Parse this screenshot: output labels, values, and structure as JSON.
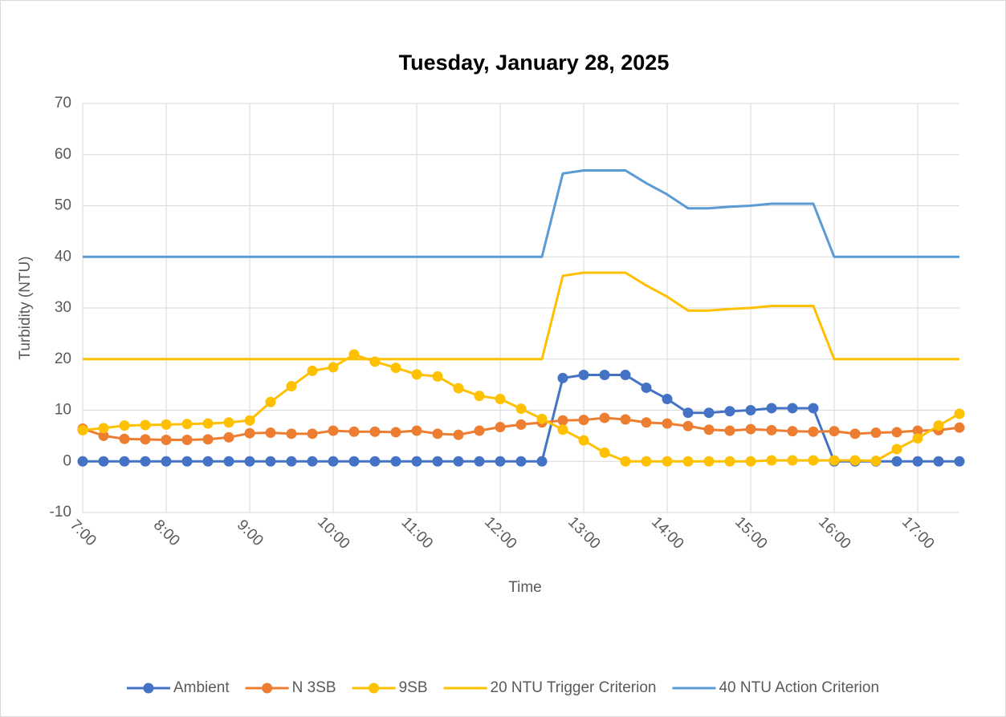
{
  "chart_data": {
    "type": "line",
    "title": "Tuesday, January 28, 2025",
    "x_label": "Time",
    "y_label": "Turbidity (NTU)",
    "categories": [
      "7:00",
      null,
      null,
      null,
      "8:00",
      null,
      null,
      null,
      "9:00",
      null,
      null,
      null,
      "10:00",
      null,
      null,
      null,
      "11:00",
      null,
      null,
      null,
      "12:00",
      null,
      null,
      null,
      "13:00",
      null,
      null,
      null,
      "14:00",
      null,
      null,
      null,
      "15:00",
      null,
      null,
      null,
      "16:00",
      null,
      null,
      null,
      "17:00",
      null,
      null
    ],
    "ylim": [
      -10,
      70
    ],
    "yticks": [
      -10,
      0,
      10,
      20,
      30,
      40,
      50,
      60,
      70
    ],
    "grid": true,
    "legend": "bottom",
    "series": [
      {
        "name": "Ambient",
        "color": "#4472c4",
        "marker": true,
        "values": [
          0,
          0,
          0,
          0,
          0,
          0,
          0,
          0,
          0,
          0,
          0,
          0,
          0,
          0,
          0,
          0,
          0,
          0,
          0,
          0,
          0,
          0,
          0,
          16.3,
          16.9,
          16.9,
          16.9,
          14.4,
          12.2,
          9.5,
          9.5,
          9.8,
          10.0,
          10.4,
          10.4,
          10.4,
          0,
          0,
          0,
          0,
          0,
          0,
          0
        ]
      },
      {
        "name": "N 3SB",
        "color": "#ed7d31",
        "marker": true,
        "values": [
          6.4,
          5.0,
          4.4,
          4.3,
          4.2,
          4.2,
          4.3,
          4.7,
          5.5,
          5.6,
          5.4,
          5.4,
          6.0,
          5.8,
          5.8,
          5.7,
          6.0,
          5.4,
          5.2,
          6.0,
          6.7,
          7.2,
          7.6,
          8.0,
          8.1,
          8.5,
          8.2,
          7.6,
          7.4,
          6.9,
          6.2,
          6.0,
          6.3,
          6.1,
          5.9,
          5.8,
          5.9,
          5.4,
          5.6,
          5.7,
          6.0,
          6.1,
          6.6
        ]
      },
      {
        "name": "9SB",
        "color": "#ffc000",
        "marker": true,
        "values": [
          6.1,
          6.5,
          7.0,
          7.1,
          7.2,
          7.3,
          7.4,
          7.6,
          8.0,
          11.6,
          14.7,
          17.7,
          18.4,
          20.9,
          19.5,
          18.3,
          17.0,
          16.6,
          14.3,
          12.8,
          12.2,
          10.3,
          8.3,
          6.2,
          4.1,
          1.7,
          0,
          0,
          0,
          0,
          0,
          0,
          0,
          0.2,
          0.2,
          0.2,
          0.2,
          0.2,
          0.1,
          2.4,
          4.5,
          7.0,
          9.3
        ]
      },
      {
        "name": "20 NTU Trigger Criterion",
        "color": "#ffc000",
        "marker": false,
        "values": [
          20,
          20,
          20,
          20,
          20,
          20,
          20,
          20,
          20,
          20,
          20,
          20,
          20,
          20,
          20,
          20,
          20,
          20,
          20,
          20,
          20,
          20,
          20,
          36.3,
          36.9,
          36.9,
          36.9,
          34.4,
          32.2,
          29.5,
          29.5,
          29.8,
          30.0,
          30.4,
          30.4,
          30.4,
          20,
          20,
          20,
          20,
          20,
          20,
          20
        ]
      },
      {
        "name": "40 NTU Action Criterion",
        "color": "#5b9bd5",
        "marker": false,
        "values": [
          40,
          40,
          40,
          40,
          40,
          40,
          40,
          40,
          40,
          40,
          40,
          40,
          40,
          40,
          40,
          40,
          40,
          40,
          40,
          40,
          40,
          40,
          40,
          56.3,
          56.9,
          56.9,
          56.9,
          54.4,
          52.2,
          49.5,
          49.5,
          49.8,
          50.0,
          50.4,
          50.4,
          50.4,
          40,
          40,
          40,
          40,
          40,
          40,
          40
        ]
      }
    ]
  }
}
